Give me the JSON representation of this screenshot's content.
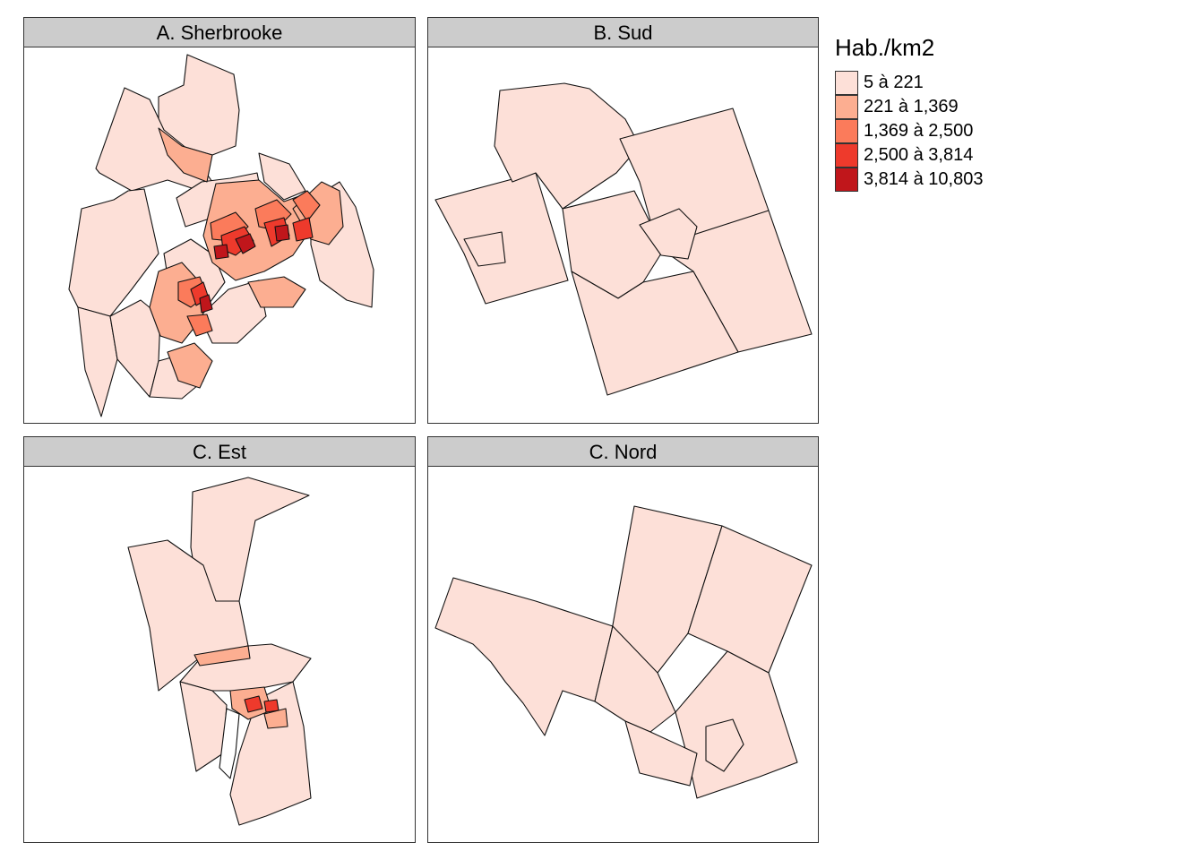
{
  "panels": [
    {
      "title": "A. Sherbrooke"
    },
    {
      "title": "B. Sud"
    },
    {
      "title": "C. Est"
    },
    {
      "title": "C. Nord"
    }
  ],
  "legend": {
    "title": "Hab./km2",
    "classes": [
      {
        "label": "5 à 221",
        "color": "#fde0d8"
      },
      {
        "label": "221 à 1,369",
        "color": "#fcae91"
      },
      {
        "label": "1,369 à 2,500",
        "color": "#fb7b5b"
      },
      {
        "label": "2,500 à 3,814",
        "color": "#ee3a2c"
      },
      {
        "label": "3,814 à 10,803",
        "color": "#c0161b"
      }
    ]
  }
}
